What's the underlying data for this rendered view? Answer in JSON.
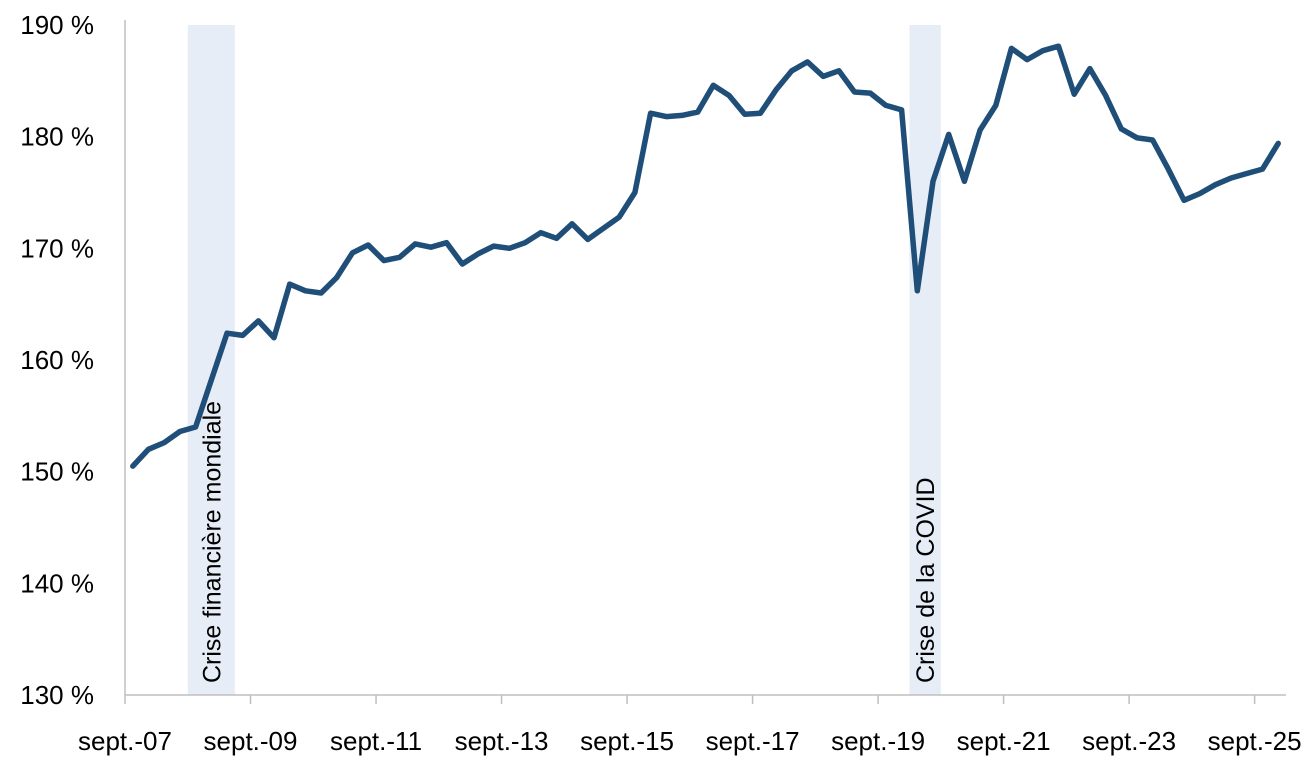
{
  "chart_data": {
    "type": "line",
    "title": "",
    "xlabel": "",
    "ylabel": "",
    "ylim": [
      130,
      190
    ],
    "yticks": [
      130,
      140,
      150,
      160,
      170,
      180,
      190
    ],
    "y_tick_labels": [
      "130 %",
      "140 %",
      "150 %",
      "160 %",
      "170 %",
      "180 %",
      "190 %"
    ],
    "x_range": [
      2007.75,
      2026.25
    ],
    "x_tick_positions": [
      2007.75,
      2009.75,
      2011.75,
      2013.75,
      2015.75,
      2017.75,
      2019.75,
      2021.75,
      2023.75,
      2025.75
    ],
    "x_tick_labels": [
      "sept.-07",
      "sept.-09",
      "sept.-11",
      "sept.-13",
      "sept.-15",
      "sept.-17",
      "sept.-19",
      "sept.-21",
      "sept.-23",
      "sept.-25"
    ],
    "grid": false,
    "legend": "none",
    "line_color": "#1F4E79",
    "band_color": "#E7EDF7",
    "bands": [
      {
        "label": "Crise financière mondiale",
        "start": 2008.75,
        "end": 2009.5
      },
      {
        "label": "Crise de la COVID",
        "start": 2020.25,
        "end": 2020.75
      }
    ],
    "series": [
      {
        "x": [
          2007.875,
          2008.125,
          2008.375,
          2008.625,
          2008.875,
          2009.125,
          2009.375,
          2009.625,
          2009.875,
          2010.125,
          2010.375,
          2010.625,
          2010.875,
          2011.125,
          2011.375,
          2011.625,
          2011.875,
          2012.125,
          2012.375,
          2012.625,
          2012.875,
          2013.125,
          2013.375,
          2013.625,
          2013.875,
          2014.125,
          2014.375,
          2014.625,
          2014.875,
          2015.125,
          2015.375,
          2015.625,
          2015.875,
          2016.125,
          2016.375,
          2016.625,
          2016.875,
          2017.125,
          2017.375,
          2017.625,
          2017.875,
          2018.125,
          2018.375,
          2018.625,
          2018.875,
          2019.125,
          2019.375,
          2019.625,
          2019.875,
          2020.125,
          2020.375,
          2020.625,
          2020.875,
          2021.125,
          2021.375,
          2021.625,
          2021.875,
          2022.125,
          2022.375,
          2022.625,
          2022.875,
          2023.125,
          2023.375,
          2023.625,
          2023.875,
          2024.125,
          2024.375,
          2024.625,
          2024.875,
          2025.125,
          2025.375,
          2025.625,
          2025.875,
          2026.125
        ],
        "values": [
          150.5,
          152.0,
          152.6,
          153.6,
          154.0,
          158.2,
          162.4,
          162.2,
          163.5,
          162.0,
          166.8,
          166.2,
          166.0,
          167.4,
          169.6,
          170.3,
          168.9,
          169.2,
          170.4,
          170.1,
          170.5,
          168.6,
          169.5,
          170.2,
          170.0,
          170.5,
          171.4,
          170.9,
          172.2,
          170.8,
          171.8,
          172.8,
          175.0,
          182.1,
          181.8,
          181.9,
          182.2,
          184.6,
          183.7,
          182.0,
          182.1,
          184.2,
          185.9,
          186.7,
          185.4,
          185.9,
          184.0,
          183.9,
          182.8,
          182.4,
          166.2,
          176.0,
          180.2,
          176.0,
          180.6,
          182.8,
          187.9,
          186.9,
          187.7,
          188.1,
          183.8,
          186.1,
          183.7,
          180.7,
          179.9,
          179.7,
          177.1,
          174.3,
          174.9,
          175.7,
          176.3,
          176.7,
          177.1,
          179.4
        ]
      }
    ]
  }
}
